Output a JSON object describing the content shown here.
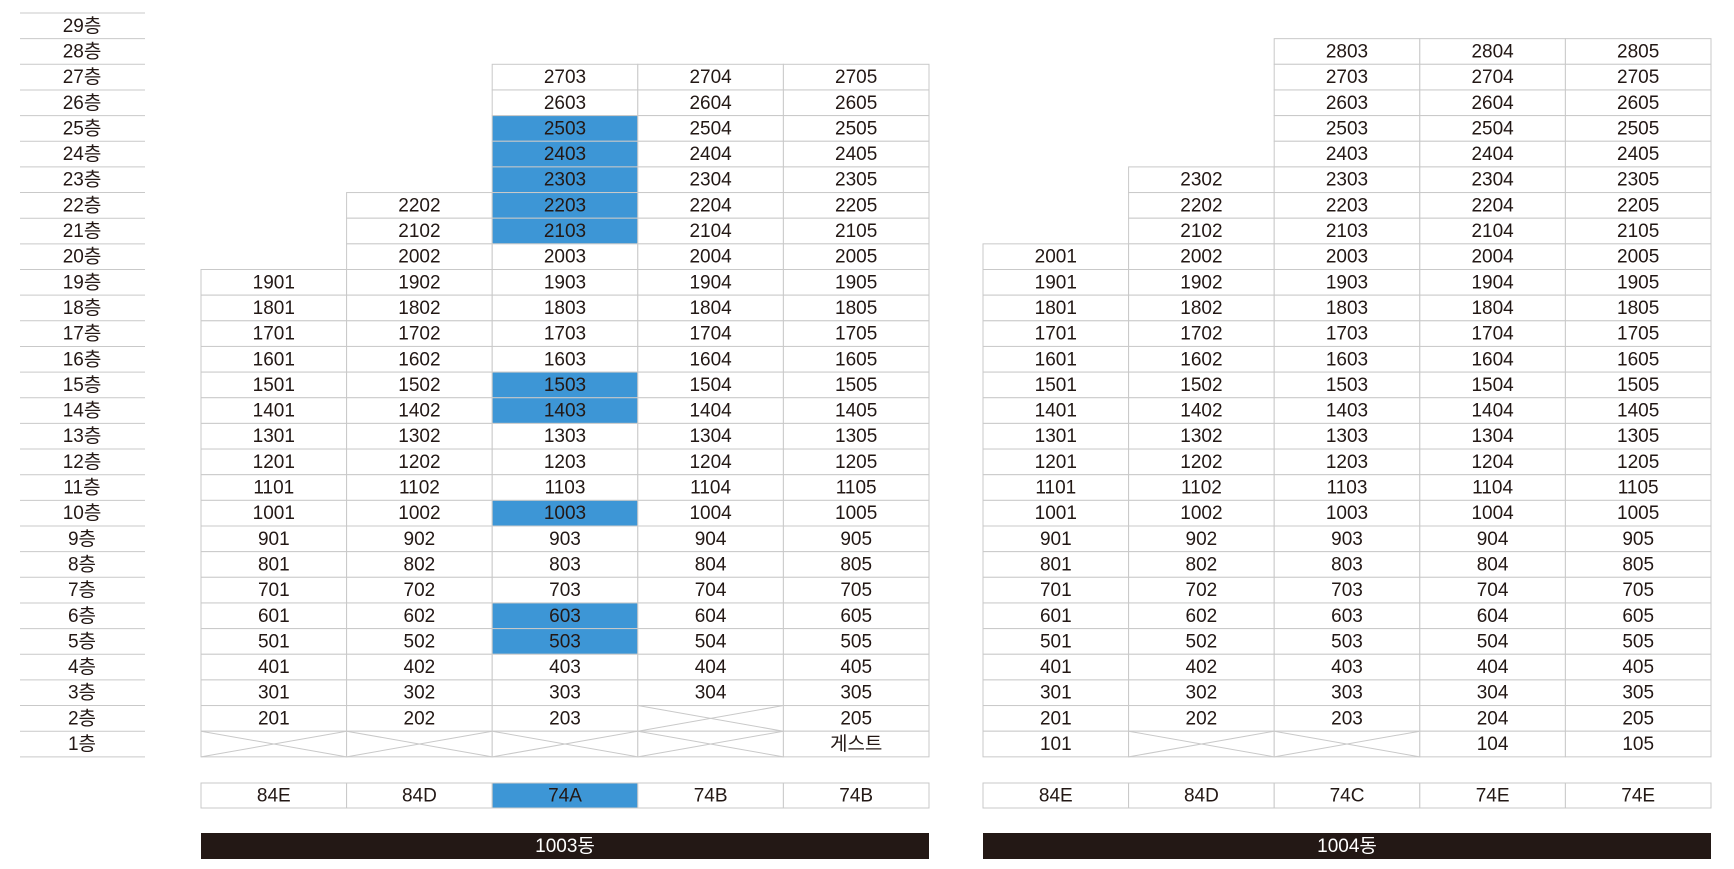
{
  "floors": [
    "29층",
    "28층",
    "27층",
    "26층",
    "25층",
    "24층",
    "23층",
    "22층",
    "21층",
    "20층",
    "19층",
    "18층",
    "17층",
    "16층",
    "15층",
    "14층",
    "13층",
    "12층",
    "11층",
    "10층",
    "9층",
    "8층",
    "7층",
    "6층",
    "5층",
    "4층",
    "3층",
    "2층",
    "1층"
  ],
  "highlight_color": "#3d96d6",
  "buildings": [
    {
      "name": "1003동",
      "types": [
        "84E",
        "84D",
        {
          "label": "74A",
          "highlight": true
        },
        "74B",
        "74B"
      ],
      "units": [
        [
          null,
          null,
          null,
          null,
          null
        ],
        [
          null,
          null,
          null,
          null,
          null
        ],
        [
          null,
          null,
          "2703",
          "2704",
          "2705"
        ],
        [
          null,
          null,
          "2603",
          "2604",
          "2605"
        ],
        [
          null,
          null,
          {
            "label": "2503",
            "highlight": true
          },
          "2504",
          "2505"
        ],
        [
          null,
          null,
          {
            "label": "2403",
            "highlight": true
          },
          "2404",
          "2405"
        ],
        [
          null,
          null,
          {
            "label": "2303",
            "highlight": true
          },
          "2304",
          "2305"
        ],
        [
          null,
          "2202",
          {
            "label": "2203",
            "highlight": true
          },
          "2204",
          "2205"
        ],
        [
          null,
          "2102",
          {
            "label": "2103",
            "highlight": true
          },
          "2104",
          "2105"
        ],
        [
          null,
          "2002",
          "2003",
          "2004",
          "2005"
        ],
        [
          "1901",
          "1902",
          "1903",
          "1904",
          "1905"
        ],
        [
          "1801",
          "1802",
          "1803",
          "1804",
          "1805"
        ],
        [
          "1701",
          "1702",
          "1703",
          "1704",
          "1705"
        ],
        [
          "1601",
          "1602",
          "1603",
          "1604",
          "1605"
        ],
        [
          "1501",
          "1502",
          {
            "label": "1503",
            "highlight": true
          },
          "1504",
          "1505"
        ],
        [
          "1401",
          "1402",
          {
            "label": "1403",
            "highlight": true
          },
          "1404",
          "1405"
        ],
        [
          "1301",
          "1302",
          "1303",
          "1304",
          "1305"
        ],
        [
          "1201",
          "1202",
          "1203",
          "1204",
          "1205"
        ],
        [
          "1101",
          "1102",
          "1103",
          "1104",
          "1105"
        ],
        [
          "1001",
          "1002",
          {
            "label": "1003",
            "highlight": true
          },
          "1004",
          "1005"
        ],
        [
          "901",
          "902",
          "903",
          "904",
          "905"
        ],
        [
          "801",
          "802",
          "803",
          "804",
          "805"
        ],
        [
          "701",
          "702",
          "703",
          "704",
          "705"
        ],
        [
          "601",
          "602",
          {
            "label": "603",
            "highlight": true
          },
          "604",
          "605"
        ],
        [
          "501",
          "502",
          {
            "label": "503",
            "highlight": true
          },
          "504",
          "505"
        ],
        [
          "401",
          "402",
          "403",
          "404",
          "405"
        ],
        [
          "301",
          "302",
          "303",
          "304",
          "305"
        ],
        [
          "201",
          "202",
          "203",
          {
            "crossed": true
          },
          "205"
        ],
        [
          {
            "crossed": true
          },
          {
            "crossed": true
          },
          {
            "crossed": true
          },
          {
            "crossed": true
          },
          "게스트"
        ]
      ]
    },
    {
      "name": "1004동",
      "types": [
        "84E",
        "84D",
        "74C",
        "74E",
        "74E"
      ],
      "units": [
        [
          null,
          null,
          null,
          null,
          null
        ],
        [
          null,
          null,
          "2803",
          "2804",
          "2805"
        ],
        [
          null,
          null,
          "2703",
          "2704",
          "2705"
        ],
        [
          null,
          null,
          "2603",
          "2604",
          "2605"
        ],
        [
          null,
          null,
          "2503",
          "2504",
          "2505"
        ],
        [
          null,
          null,
          "2403",
          "2404",
          "2405"
        ],
        [
          null,
          "2302",
          "2303",
          "2304",
          "2305"
        ],
        [
          null,
          "2202",
          "2203",
          "2204",
          "2205"
        ],
        [
          null,
          "2102",
          "2103",
          "2104",
          "2105"
        ],
        [
          "2001",
          "2002",
          "2003",
          "2004",
          "2005"
        ],
        [
          "1901",
          "1902",
          "1903",
          "1904",
          "1905"
        ],
        [
          "1801",
          "1802",
          "1803",
          "1804",
          "1805"
        ],
        [
          "1701",
          "1702",
          "1703",
          "1704",
          "1705"
        ],
        [
          "1601",
          "1602",
          "1603",
          "1604",
          "1605"
        ],
        [
          "1501",
          "1502",
          "1503",
          "1504",
          "1505"
        ],
        [
          "1401",
          "1402",
          "1403",
          "1404",
          "1405"
        ],
        [
          "1301",
          "1302",
          "1303",
          "1304",
          "1305"
        ],
        [
          "1201",
          "1202",
          "1203",
          "1204",
          "1205"
        ],
        [
          "1101",
          "1102",
          "1103",
          "1104",
          "1105"
        ],
        [
          "1001",
          "1002",
          "1003",
          "1004",
          "1005"
        ],
        [
          "901",
          "902",
          "903",
          "904",
          "905"
        ],
        [
          "801",
          "802",
          "803",
          "804",
          "805"
        ],
        [
          "701",
          "702",
          "703",
          "704",
          "705"
        ],
        [
          "601",
          "602",
          "603",
          "604",
          "605"
        ],
        [
          "501",
          "502",
          "503",
          "504",
          "505"
        ],
        [
          "401",
          "402",
          "403",
          "404",
          "405"
        ],
        [
          "301",
          "302",
          "303",
          "304",
          "305"
        ],
        [
          "201",
          "202",
          "203",
          "204",
          "205"
        ],
        [
          "101",
          {
            "crossed": true
          },
          {
            "crossed": true
          },
          "104",
          "105"
        ]
      ]
    }
  ]
}
